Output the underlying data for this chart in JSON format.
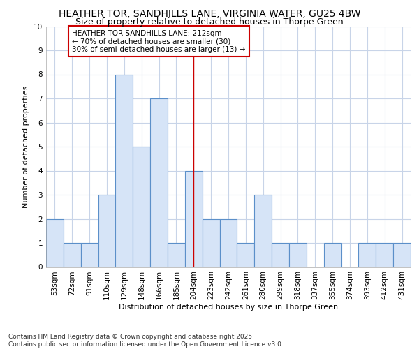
{
  "title": "HEATHER TOR, SANDHILLS LANE, VIRGINIA WATER, GU25 4BW",
  "subtitle": "Size of property relative to detached houses in Thorpe Green",
  "xlabel": "Distribution of detached houses by size in Thorpe Green",
  "ylabel": "Number of detached properties",
  "categories": [
    "53sqm",
    "72sqm",
    "91sqm",
    "110sqm",
    "129sqm",
    "148sqm",
    "166sqm",
    "185sqm",
    "204sqm",
    "223sqm",
    "242sqm",
    "261sqm",
    "280sqm",
    "299sqm",
    "318sqm",
    "337sqm",
    "355sqm",
    "374sqm",
    "393sqm",
    "412sqm",
    "431sqm"
  ],
  "values": [
    2,
    1,
    1,
    3,
    8,
    5,
    7,
    1,
    4,
    2,
    2,
    1,
    3,
    1,
    1,
    0,
    1,
    0,
    1,
    1,
    1
  ],
  "bar_color": "#d6e4f7",
  "bar_edgecolor": "#5b8fc9",
  "vline_color": "#cc0000",
  "vline_index": 8,
  "annotation_text": "HEATHER TOR SANDHILLS LANE: 212sqm\n← 70% of detached houses are smaller (30)\n30% of semi-detached houses are larger (13) →",
  "annotation_box_color": "white",
  "annotation_box_edgecolor": "#cc0000",
  "ylim": [
    0,
    10
  ],
  "yticks": [
    0,
    1,
    2,
    3,
    4,
    5,
    6,
    7,
    8,
    9,
    10
  ],
  "background_color": "#ffffff",
  "plot_bg_color": "#ffffff",
  "grid_color": "#c8d4e8",
  "footer_line1": "Contains HM Land Registry data © Crown copyright and database right 2025.",
  "footer_line2": "Contains public sector information licensed under the Open Government Licence v3.0.",
  "title_fontsize": 10,
  "subtitle_fontsize": 9,
  "label_fontsize": 8,
  "tick_fontsize": 7.5,
  "footer_fontsize": 6.5,
  "ann_fontsize": 7.5
}
